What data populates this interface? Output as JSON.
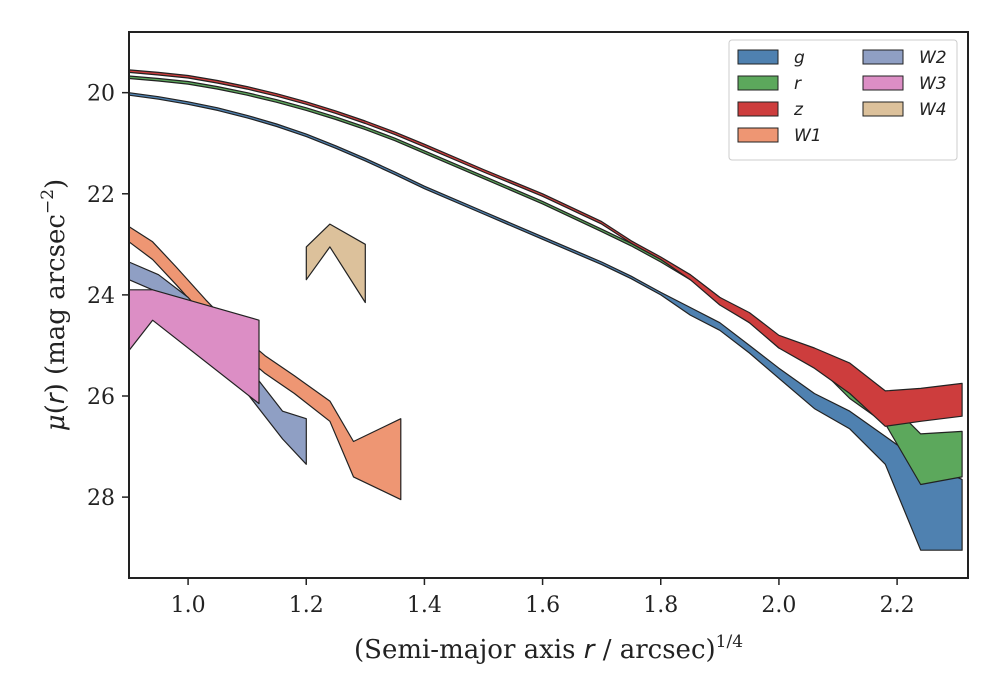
{
  "chart_data": {
    "type": "area",
    "title": "",
    "xlabel": "(Semi-major axis r / arcsec)^{1/4}",
    "xlabel_parts": {
      "prefix": "(Semi-major axis ",
      "var": "r",
      "mid": " / arcsec)",
      "sup": "1/4"
    },
    "ylabel": "μ(r) (mag arcsec^{−2})",
    "ylabel_parts": {
      "mu": "μ",
      "open": "(",
      "var": "r",
      "mid": ") (mag arcsec",
      "sup": "−2",
      "close": ")"
    },
    "xlim": [
      0.9,
      2.32
    ],
    "ylim": [
      29.6,
      18.8
    ],
    "y_inverted": true,
    "grid": false,
    "legend_position": "top-right",
    "legend_columns": 2,
    "xticks": [
      1.0,
      1.2,
      1.4,
      1.6,
      1.8,
      2.0,
      2.2
    ],
    "xtick_labels": [
      "1.0",
      "1.2",
      "1.4",
      "1.6",
      "1.8",
      "2.0",
      "2.2"
    ],
    "yticks": [
      20,
      22,
      24,
      26,
      28
    ],
    "ytick_labels": [
      "20",
      "22",
      "24",
      "26",
      "28"
    ],
    "series": [
      {
        "name": "g",
        "color": "#4f81b0",
        "x": [
          0.9,
          0.95,
          1.0,
          1.05,
          1.1,
          1.15,
          1.2,
          1.25,
          1.3,
          1.35,
          1.4,
          1.5,
          1.6,
          1.7,
          1.75,
          1.8,
          1.85,
          1.9,
          1.95,
          2.0,
          2.06,
          2.12,
          2.18,
          2.24,
          2.31
        ],
        "lower": [
          20.0,
          20.08,
          20.18,
          20.3,
          20.45,
          20.62,
          20.82,
          21.05,
          21.3,
          21.57,
          21.85,
          22.35,
          22.85,
          23.35,
          23.63,
          23.95,
          24.25,
          24.55,
          25.0,
          25.45,
          25.95,
          26.3,
          26.8,
          27.3,
          27.65
        ],
        "upper": [
          20.05,
          20.13,
          20.23,
          20.35,
          20.5,
          20.67,
          20.87,
          21.1,
          21.35,
          21.62,
          21.9,
          22.4,
          22.9,
          23.4,
          23.68,
          24.0,
          24.4,
          24.7,
          25.15,
          25.65,
          26.25,
          26.65,
          27.35,
          29.05,
          29.05
        ]
      },
      {
        "name": "r",
        "color": "#5ca85c",
        "x": [
          0.9,
          0.95,
          1.0,
          1.05,
          1.1,
          1.15,
          1.2,
          1.25,
          1.3,
          1.35,
          1.4,
          1.5,
          1.6,
          1.7,
          1.75,
          1.8,
          1.85,
          1.9,
          1.95,
          2.0,
          2.06,
          2.12,
          2.18,
          2.24,
          2.31
        ],
        "lower": [
          19.67,
          19.72,
          19.78,
          19.88,
          20.0,
          20.14,
          20.3,
          20.48,
          20.68,
          20.9,
          21.15,
          21.65,
          22.15,
          22.7,
          22.98,
          23.3,
          23.6,
          24.05,
          24.45,
          24.9,
          25.2,
          25.7,
          26.05,
          26.75,
          26.7
        ],
        "upper": [
          19.72,
          19.77,
          19.83,
          19.93,
          20.05,
          20.19,
          20.35,
          20.53,
          20.73,
          20.95,
          21.2,
          21.7,
          22.2,
          22.75,
          23.03,
          23.35,
          23.7,
          24.15,
          24.55,
          25.05,
          25.35,
          26.05,
          26.55,
          27.75,
          27.6
        ]
      },
      {
        "name": "z",
        "color": "#cd3d3d",
        "x": [
          0.9,
          0.95,
          1.0,
          1.05,
          1.1,
          1.15,
          1.2,
          1.25,
          1.3,
          1.35,
          1.4,
          1.5,
          1.6,
          1.7,
          1.75,
          1.8,
          1.85,
          1.9,
          1.95,
          2.0,
          2.06,
          2.12,
          2.18,
          2.24,
          2.31
        ],
        "lower": [
          19.55,
          19.6,
          19.66,
          19.76,
          19.88,
          20.02,
          20.18,
          20.36,
          20.56,
          20.78,
          21.02,
          21.52,
          22.0,
          22.55,
          22.93,
          23.25,
          23.6,
          24.05,
          24.35,
          24.8,
          25.05,
          25.35,
          25.9,
          25.85,
          25.75
        ],
        "upper": [
          19.6,
          19.65,
          19.71,
          19.81,
          19.93,
          20.07,
          20.23,
          20.41,
          20.61,
          20.83,
          21.07,
          21.57,
          22.05,
          22.6,
          22.98,
          23.3,
          23.7,
          24.2,
          24.55,
          25.05,
          25.45,
          25.95,
          26.6,
          26.5,
          26.4
        ]
      },
      {
        "name": "W1",
        "color": "#ee9673",
        "x": [
          0.9,
          0.94,
          0.98,
          1.03,
          1.08,
          1.13,
          1.18,
          1.24,
          1.28,
          1.36
        ],
        "lower": [
          22.65,
          22.95,
          23.45,
          24.1,
          24.7,
          25.2,
          25.6,
          26.1,
          26.9,
          26.45
        ],
        "upper": [
          22.95,
          23.3,
          23.8,
          24.45,
          25.05,
          25.55,
          25.95,
          26.5,
          27.6,
          28.05
        ]
      },
      {
        "name": "W2",
        "color": "#8f9fc4",
        "x": [
          0.9,
          0.95,
          1.0,
          1.05,
          1.1,
          1.16,
          1.2
        ],
        "lower": [
          23.35,
          23.6,
          24.05,
          24.7,
          25.4,
          26.3,
          26.45
        ],
        "upper": [
          23.7,
          23.95,
          24.45,
          25.15,
          25.95,
          26.85,
          27.35
        ]
      },
      {
        "name": "W3",
        "color": "#dc8ec5",
        "x": [
          0.9,
          0.94,
          1.12
        ],
        "lower": [
          23.9,
          23.9,
          24.5
        ],
        "upper": [
          25.1,
          24.5,
          26.15
        ]
      },
      {
        "name": "W4",
        "color": "#dcc19b",
        "x": [
          1.2,
          1.24,
          1.3
        ],
        "lower": [
          23.05,
          22.6,
          23.0
        ],
        "upper": [
          23.7,
          23.05,
          24.15
        ]
      }
    ]
  }
}
